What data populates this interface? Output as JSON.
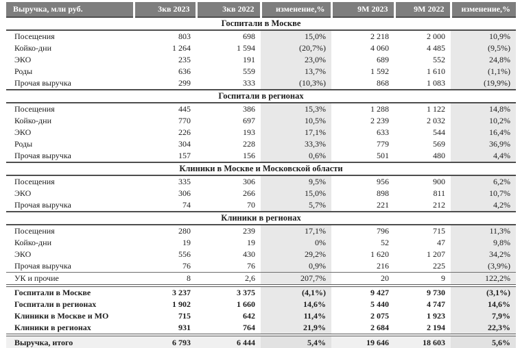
{
  "table": {
    "title_column_header": "Выручка, млн руб.",
    "columns": [
      "Выручка, млн руб.",
      "3кв 2023",
      "3кв 2022",
      "изменение,%",
      "9М 2023",
      "9М 2022",
      "изменение,%"
    ],
    "sections": [
      {
        "title": "Госпитали в Москве",
        "rows": [
          {
            "label": "Посещения",
            "values": [
              "803",
              "698",
              "15,0%",
              "2 218",
              "2 000",
              "10,9%"
            ]
          },
          {
            "label": "Койко-дни",
            "values": [
              "1 264",
              "1 594",
              "(20,7%)",
              "4 060",
              "4 485",
              "(9,5%)"
            ]
          },
          {
            "label": "ЭКО",
            "values": [
              "235",
              "191",
              "23,0%",
              "689",
              "552",
              "24,8%"
            ]
          },
          {
            "label": "Роды",
            "values": [
              "636",
              "559",
              "13,7%",
              "1 592",
              "1 610",
              "(1,1%)"
            ]
          },
          {
            "label": "Прочая выручка",
            "values": [
              "299",
              "333",
              "(10,3%)",
              "868",
              "1 083",
              "(19,9%)"
            ]
          }
        ]
      },
      {
        "title": "Госпитали в регионах",
        "rows": [
          {
            "label": "Посещения",
            "values": [
              "445",
              "386",
              "15,3%",
              "1 288",
              "1 122",
              "14,8%"
            ]
          },
          {
            "label": "Койко-дни",
            "values": [
              "770",
              "697",
              "10,5%",
              "2 239",
              "2 032",
              "10,2%"
            ]
          },
          {
            "label": "ЭКО",
            "values": [
              "226",
              "193",
              "17,1%",
              "633",
              "544",
              "16,4%"
            ]
          },
          {
            "label": "Роды",
            "values": [
              "304",
              "228",
              "33,3%",
              "779",
              "569",
              "36,9%"
            ]
          },
          {
            "label": "Прочая выручка",
            "values": [
              "157",
              "156",
              "0,6%",
              "501",
              "480",
              "4,4%"
            ]
          }
        ]
      },
      {
        "title": "Клиники в Москве и Московской области",
        "rows": [
          {
            "label": "Посещения",
            "values": [
              "335",
              "306",
              "9,5%",
              "956",
              "900",
              "6,2%"
            ]
          },
          {
            "label": "ЭКО",
            "values": [
              "306",
              "266",
              "15,0%",
              "898",
              "811",
              "10,7%"
            ]
          },
          {
            "label": "Прочая выручка",
            "values": [
              "74",
              "70",
              "5,7%",
              "221",
              "212",
              "4,2%"
            ]
          }
        ]
      },
      {
        "title": "Клиники в регионах",
        "rows": [
          {
            "label": "Посещения",
            "values": [
              "280",
              "239",
              "17,1%",
              "796",
              "715",
              "11,3%"
            ]
          },
          {
            "label": "Койко-дни",
            "values": [
              "19",
              "19",
              "0%",
              "52",
              "47",
              "9,8%"
            ]
          },
          {
            "label": "ЭКО",
            "values": [
              "556",
              "430",
              "29,2%",
              "1 620",
              "1 207",
              "34,2%"
            ]
          },
          {
            "label": "Прочая выручка",
            "values": [
              "76",
              "76",
              "0,9%",
              "216",
              "225",
              "(3,9%)"
            ]
          }
        ]
      }
    ],
    "uk_row": {
      "label": "УК и прочие",
      "values": [
        "8",
        "2,6",
        "207,7%",
        "20",
        "9",
        "122,2%"
      ]
    },
    "summary_rows": [
      {
        "label": "Госпитали в Москве",
        "values": [
          "3 237",
          "3 375",
          "(4,1%)",
          "9 427",
          "9 730",
          "(3,1%)"
        ]
      },
      {
        "label": "Госпитали в регионах",
        "values": [
          "1 902",
          "1 660",
          "14,6%",
          "5 440",
          "4 747",
          "14,6%"
        ]
      },
      {
        "label": "Клиники в Москве и МО",
        "values": [
          "715",
          "642",
          "11,4%",
          "2 075",
          "1 923",
          "7,9%"
        ]
      },
      {
        "label": "Клиники в регионах",
        "values": [
          "931",
          "764",
          "21,9%",
          "2 684",
          "2 194",
          "22,3%"
        ]
      }
    ],
    "total_row": {
      "label": "Выручка, итого",
      "values": [
        "6 793",
        "6 444",
        "5,4%",
        "19 646",
        "18 603",
        "5,6%"
      ]
    }
  },
  "colors": {
    "header_bg": "#7e7e7e",
    "header_text": "#ffffff",
    "change_column_bg": "#e8e8e8",
    "total_row_bg": "#f0f0f0",
    "rule_dark": "#4d4d4d"
  }
}
